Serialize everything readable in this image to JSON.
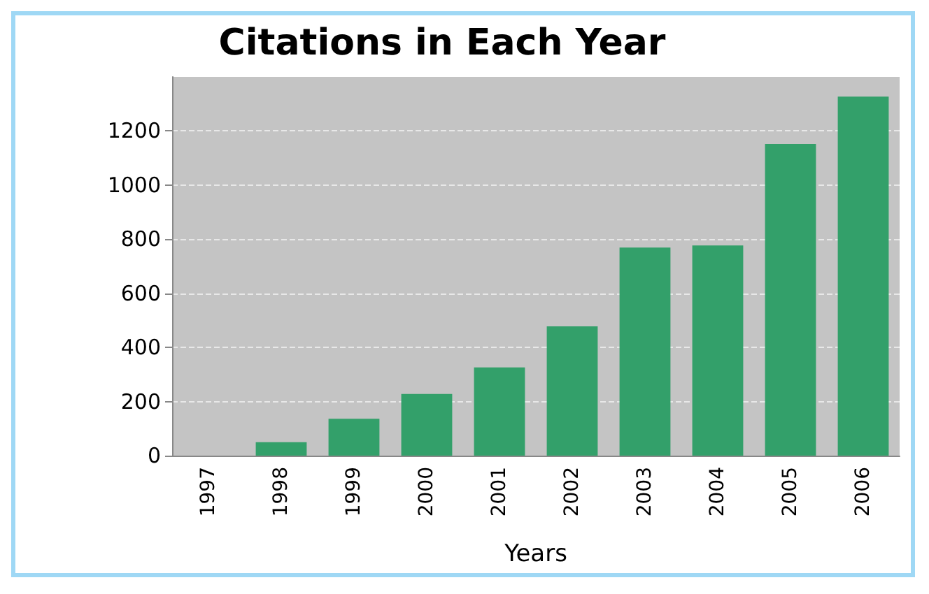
{
  "chart_data": {
    "type": "bar",
    "title": "Citations in Each Year",
    "xlabel": "Years",
    "categories": [
      "1997",
      "1998",
      "1999",
      "2000",
      "2001",
      "2002",
      "2003",
      "2004",
      "2005",
      "2006"
    ],
    "values": [
      0,
      50,
      136,
      228,
      326,
      478,
      769,
      777,
      1152,
      1327
    ],
    "color": "#33a06a",
    "ylim": [
      0,
      1400
    ],
    "yticks": [
      0,
      200,
      400,
      600,
      800,
      1000,
      1200
    ],
    "grid": "y"
  }
}
